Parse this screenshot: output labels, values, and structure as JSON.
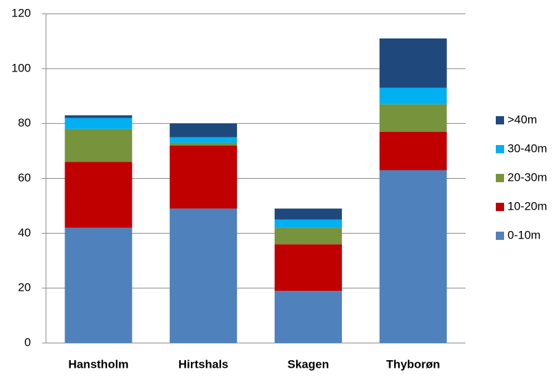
{
  "chart_data": {
    "type": "stacked_bar",
    "categories": [
      "Hanstholm",
      "Hirtshals",
      "Skagen",
      "Thyborøn"
    ],
    "series": [
      {
        "name": "0-10m",
        "color": "#4f81bd",
        "values": [
          42,
          49,
          19,
          63
        ]
      },
      {
        "name": "10-20m",
        "color": "#c00000",
        "values": [
          24,
          23,
          17,
          14
        ]
      },
      {
        "name": "20-30m",
        "color": "#77933c",
        "values": [
          12,
          1,
          6,
          10
        ]
      },
      {
        "name": "30-40m",
        "color": "#00b0f0",
        "values": [
          4,
          2,
          3,
          6
        ]
      },
      {
        "name": ">40m",
        "color": "#1f497d",
        "values": [
          1,
          5,
          4,
          18
        ]
      }
    ],
    "ylim": [
      0,
      120
    ],
    "yticks": [
      0,
      20,
      40,
      60,
      80,
      100,
      120
    ],
    "grid": true,
    "legend": "right"
  }
}
